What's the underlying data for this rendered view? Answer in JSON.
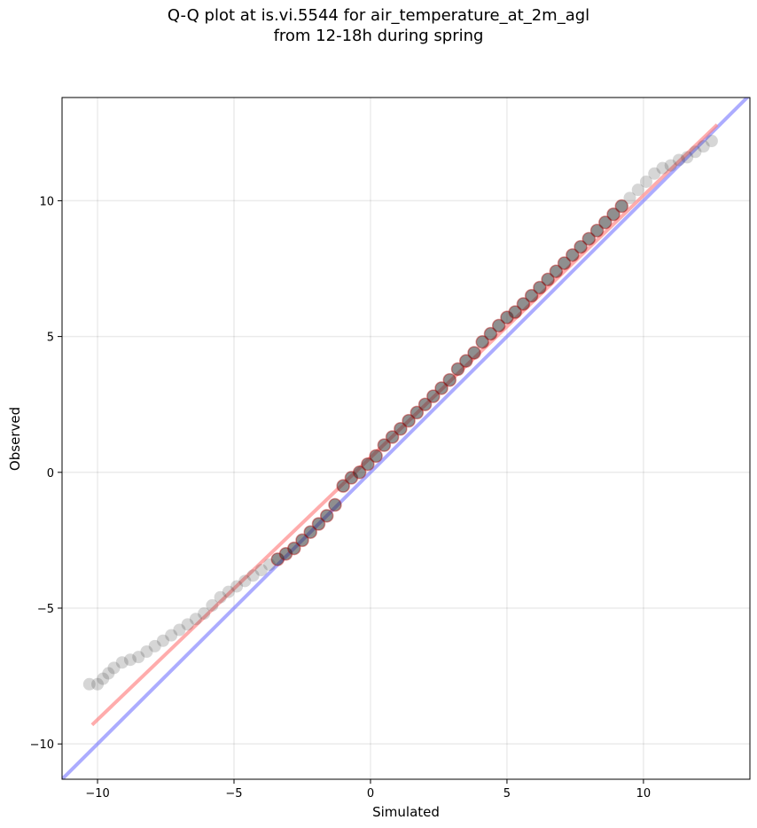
{
  "title_line1": "Q-Q plot at is.vi.5544 for air_temperature_at_2m_agl",
  "title_line2": "from 12-18h during spring",
  "chart_data": {
    "type": "scatter",
    "title": "Q-Q plot at is.vi.5544 for air_temperature_at_2m_agl\nfrom 12-18h during spring",
    "xlabel": "Simulated",
    "ylabel": "Observed",
    "xlim": [
      -11.3,
      13.9
    ],
    "ylim": [
      -11.3,
      13.8
    ],
    "xticks": [
      -10,
      -5,
      0,
      5,
      10
    ],
    "yticks": [
      -10,
      -5,
      0,
      5,
      10
    ],
    "xtick_labels": [
      "−10",
      "−5",
      "0",
      "5",
      "10"
    ],
    "ytick_labels": [
      "−10",
      "−5",
      "0",
      "5",
      "10"
    ],
    "grid": true,
    "colors": {
      "points": "#333333",
      "identity_line": "#8080ff",
      "fit_line": "#ff8080",
      "fit_inner": "#b00000"
    },
    "identity_line": {
      "x": [
        -11.3,
        13.9
      ],
      "y": [
        -11.3,
        13.9
      ]
    },
    "fit_line": {
      "x": [
        -10.2,
        12.7
      ],
      "y": [
        -9.3,
        12.8
      ]
    },
    "quantiles": {
      "x": [
        -10.3,
        -10.0,
        -9.8,
        -9.6,
        -9.4,
        -9.1,
        -8.8,
        -8.5,
        -8.2,
        -7.9,
        -7.6,
        -7.3,
        -7.0,
        -6.7,
        -6.4,
        -6.1,
        -5.8,
        -5.5,
        -5.2,
        -4.9,
        -4.6,
        -4.3,
        -4.0,
        -3.7,
        -3.4,
        -3.1,
        -2.8,
        -2.5,
        -2.2,
        -1.9,
        -1.6,
        -1.3,
        -1.0,
        -0.7,
        -0.4,
        -0.1,
        0.2,
        0.5,
        0.8,
        1.1,
        1.4,
        1.7,
        2.0,
        2.3,
        2.6,
        2.9,
        3.2,
        3.5,
        3.8,
        4.1,
        4.4,
        4.7,
        5.0,
        5.3,
        5.6,
        5.9,
        6.2,
        6.5,
        6.8,
        7.1,
        7.4,
        7.7,
        8.0,
        8.3,
        8.6,
        8.9,
        9.2,
        9.5,
        9.8,
        10.1,
        10.4,
        10.7,
        11.0,
        11.3,
        11.6,
        11.9,
        12.2,
        12.5
      ],
      "y": [
        -7.8,
        -7.8,
        -7.6,
        -7.4,
        -7.2,
        -7.0,
        -6.9,
        -6.8,
        -6.6,
        -6.4,
        -6.2,
        -6.0,
        -5.8,
        -5.6,
        -5.4,
        -5.2,
        -4.9,
        -4.6,
        -4.4,
        -4.2,
        -4.0,
        -3.8,
        -3.6,
        -3.4,
        -3.2,
        -3.0,
        -2.8,
        -2.5,
        -2.2,
        -1.9,
        -1.6,
        -1.2,
        -0.5,
        -0.2,
        0.0,
        0.3,
        0.6,
        1.0,
        1.3,
        1.6,
        1.9,
        2.2,
        2.5,
        2.8,
        3.1,
        3.4,
        3.8,
        4.1,
        4.4,
        4.8,
        5.1,
        5.4,
        5.7,
        5.9,
        6.2,
        6.5,
        6.8,
        7.1,
        7.4,
        7.7,
        8.0,
        8.3,
        8.6,
        8.9,
        9.2,
        9.5,
        9.8,
        10.1,
        10.4,
        10.7,
        11.0,
        11.2,
        11.3,
        11.5,
        11.6,
        11.8,
        12.0,
        12.2
      ]
    }
  }
}
